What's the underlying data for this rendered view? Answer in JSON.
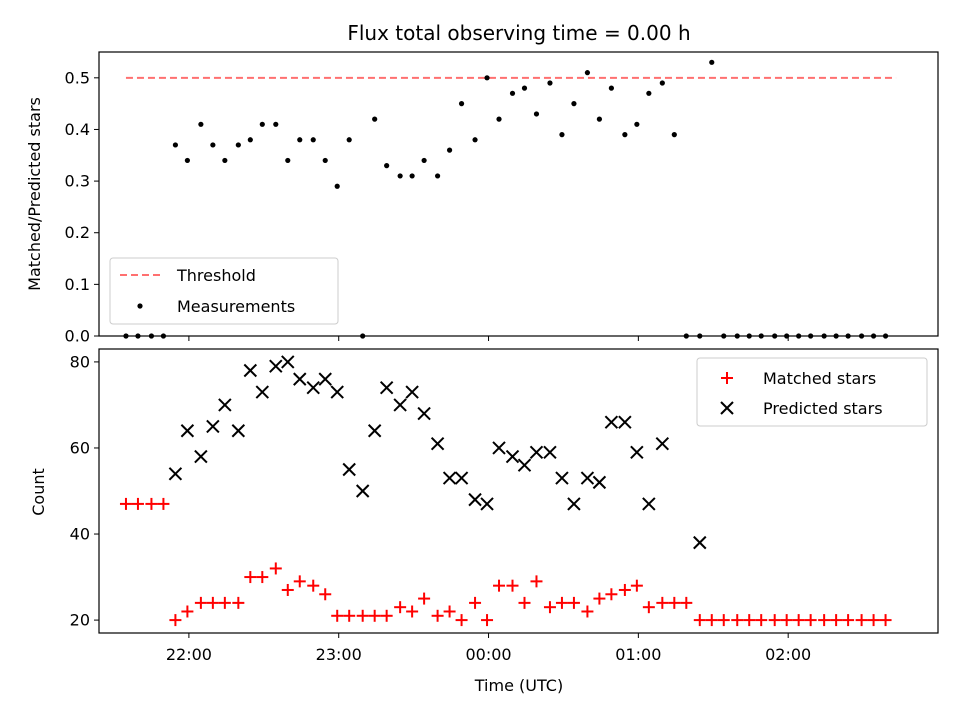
{
  "chart_data": [
    {
      "type": "scatter",
      "title": "Flux total observing time = 0.00 h",
      "xlabel": "",
      "ylabel": "Matched/Predicted stars",
      "ylim": [
        0,
        0.55
      ],
      "xlim_hours": [
        21.4,
        27.0
      ],
      "yticks": [
        0.0,
        0.1,
        0.2,
        0.3,
        0.4,
        0.5
      ],
      "ytick_labels": [
        "0.0",
        "0.1",
        "0.2",
        "0.3",
        "0.4",
        "0.5"
      ],
      "threshold": {
        "name": "Threshold",
        "value": 0.5,
        "x_start": 21.58,
        "x_end": 26.72,
        "color": "#ff7070"
      },
      "legend": {
        "placement": "lower-left",
        "entries": [
          "Threshold",
          "Measurements"
        ]
      },
      "series": [
        {
          "name": "Measurements",
          "color": "#000000",
          "x": [
            21.58,
            21.66,
            21.75,
            21.83,
            21.91,
            21.99,
            22.08,
            22.16,
            22.24,
            22.33,
            22.41,
            22.49,
            22.58,
            22.66,
            22.74,
            22.83,
            22.91,
            22.99,
            23.07,
            23.16,
            23.24,
            23.32,
            23.41,
            23.49,
            23.57,
            23.66,
            23.74,
            23.82,
            23.91,
            23.99,
            24.07,
            24.16,
            24.24,
            24.32,
            24.41,
            24.49,
            24.57,
            24.66,
            24.74,
            24.82,
            24.91,
            24.99,
            25.07,
            25.16,
            25.24,
            25.32,
            25.41,
            25.49,
            25.57,
            25.66,
            25.74,
            25.82,
            25.91,
            25.99,
            26.07,
            26.15,
            26.24,
            26.32,
            26.4,
            26.49,
            26.57,
            26.65
          ],
          "y": [
            0,
            0,
            0,
            0,
            0.37,
            0.34,
            0.41,
            0.37,
            0.34,
            0.37,
            0.38,
            0.41,
            0.41,
            0.34,
            0.38,
            0.38,
            0.34,
            0.29,
            0.38,
            0,
            0.42,
            0.33,
            0.31,
            0.31,
            0.34,
            0.31,
            0.36,
            0.45,
            0.38,
            0.5,
            0.42,
            0.47,
            0.48,
            0.43,
            0.49,
            0.39,
            0.45,
            0.51,
            0.42,
            0.48,
            0.39,
            0.41,
            0.47,
            0.49,
            0.39,
            0,
            0,
            0.53,
            0,
            0,
            0,
            0,
            0,
            0,
            0,
            0,
            0,
            0,
            0,
            0,
            0,
            0
          ]
        }
      ]
    },
    {
      "type": "scatter",
      "title": "",
      "xlabel": "Time (UTC)",
      "ylabel": "Count",
      "ylim": [
        17,
        83
      ],
      "xlim_hours": [
        21.4,
        27.0
      ],
      "yticks": [
        20,
        40,
        60,
        80
      ],
      "ytick_labels": [
        "20",
        "40",
        "60",
        "80"
      ],
      "xticks_hours": [
        22,
        23,
        24,
        25,
        26
      ],
      "xtick_labels": [
        "22:00",
        "23:00",
        "00:00",
        "01:00",
        "02:00"
      ],
      "legend": {
        "placement": "top-right",
        "entries": [
          "Matched stars",
          "Predicted stars"
        ]
      },
      "series": [
        {
          "name": "Matched stars",
          "marker": "plus",
          "color": "#ff0000",
          "x": [
            21.58,
            21.66,
            21.75,
            21.83,
            21.91,
            21.99,
            22.08,
            22.16,
            22.24,
            22.33,
            22.41,
            22.49,
            22.58,
            22.66,
            22.74,
            22.83,
            22.91,
            22.99,
            23.07,
            23.16,
            23.24,
            23.32,
            23.41,
            23.49,
            23.57,
            23.66,
            23.74,
            23.82,
            23.91,
            23.99,
            24.07,
            24.16,
            24.24,
            24.32,
            24.41,
            24.49,
            24.57,
            24.66,
            24.74,
            24.82,
            24.91,
            24.99,
            25.07,
            25.16,
            25.24,
            25.32,
            25.41,
            25.49,
            25.57,
            25.66,
            25.74,
            25.82,
            25.91,
            25.99,
            26.07,
            26.15,
            26.24,
            26.32,
            26.4,
            26.49,
            26.57,
            26.65
          ],
          "y": [
            47,
            47,
            47,
            47,
            20,
            22,
            24,
            24,
            24,
            24,
            30,
            30,
            32,
            27,
            29,
            28,
            26,
            21,
            21,
            21,
            21,
            21,
            23,
            22,
            25,
            21,
            22,
            20,
            24,
            20,
            28,
            28,
            24,
            29,
            23,
            24,
            24,
            22,
            25,
            26,
            27,
            28,
            23,
            24,
            24,
            24,
            20,
            20,
            20,
            20,
            20,
            20,
            20,
            20,
            20,
            20,
            20,
            20,
            20,
            20,
            20,
            20
          ]
        },
        {
          "name": "Predicted stars",
          "marker": "x",
          "color": "#000000",
          "x": [
            21.91,
            21.99,
            22.08,
            22.16,
            22.24,
            22.33,
            22.41,
            22.49,
            22.58,
            22.66,
            22.74,
            22.83,
            22.91,
            22.99,
            23.07,
            23.16,
            23.24,
            23.32,
            23.41,
            23.49,
            23.57,
            23.66,
            23.74,
            23.82,
            23.91,
            23.99,
            24.07,
            24.16,
            24.24,
            24.32,
            24.41,
            24.49,
            24.57,
            24.66,
            24.74,
            24.82,
            24.91,
            24.99,
            25.07,
            25.16,
            25.41
          ],
          "y": [
            54,
            64,
            58,
            65,
            70,
            64,
            78,
            73,
            79,
            80,
            76,
            74,
            76,
            73,
            55,
            50,
            64,
            74,
            70,
            73,
            68,
            61,
            53,
            53,
            48,
            47,
            60,
            58,
            56,
            59,
            59,
            53,
            47,
            53,
            52,
            66,
            66,
            59,
            47,
            61,
            38
          ]
        }
      ]
    }
  ]
}
